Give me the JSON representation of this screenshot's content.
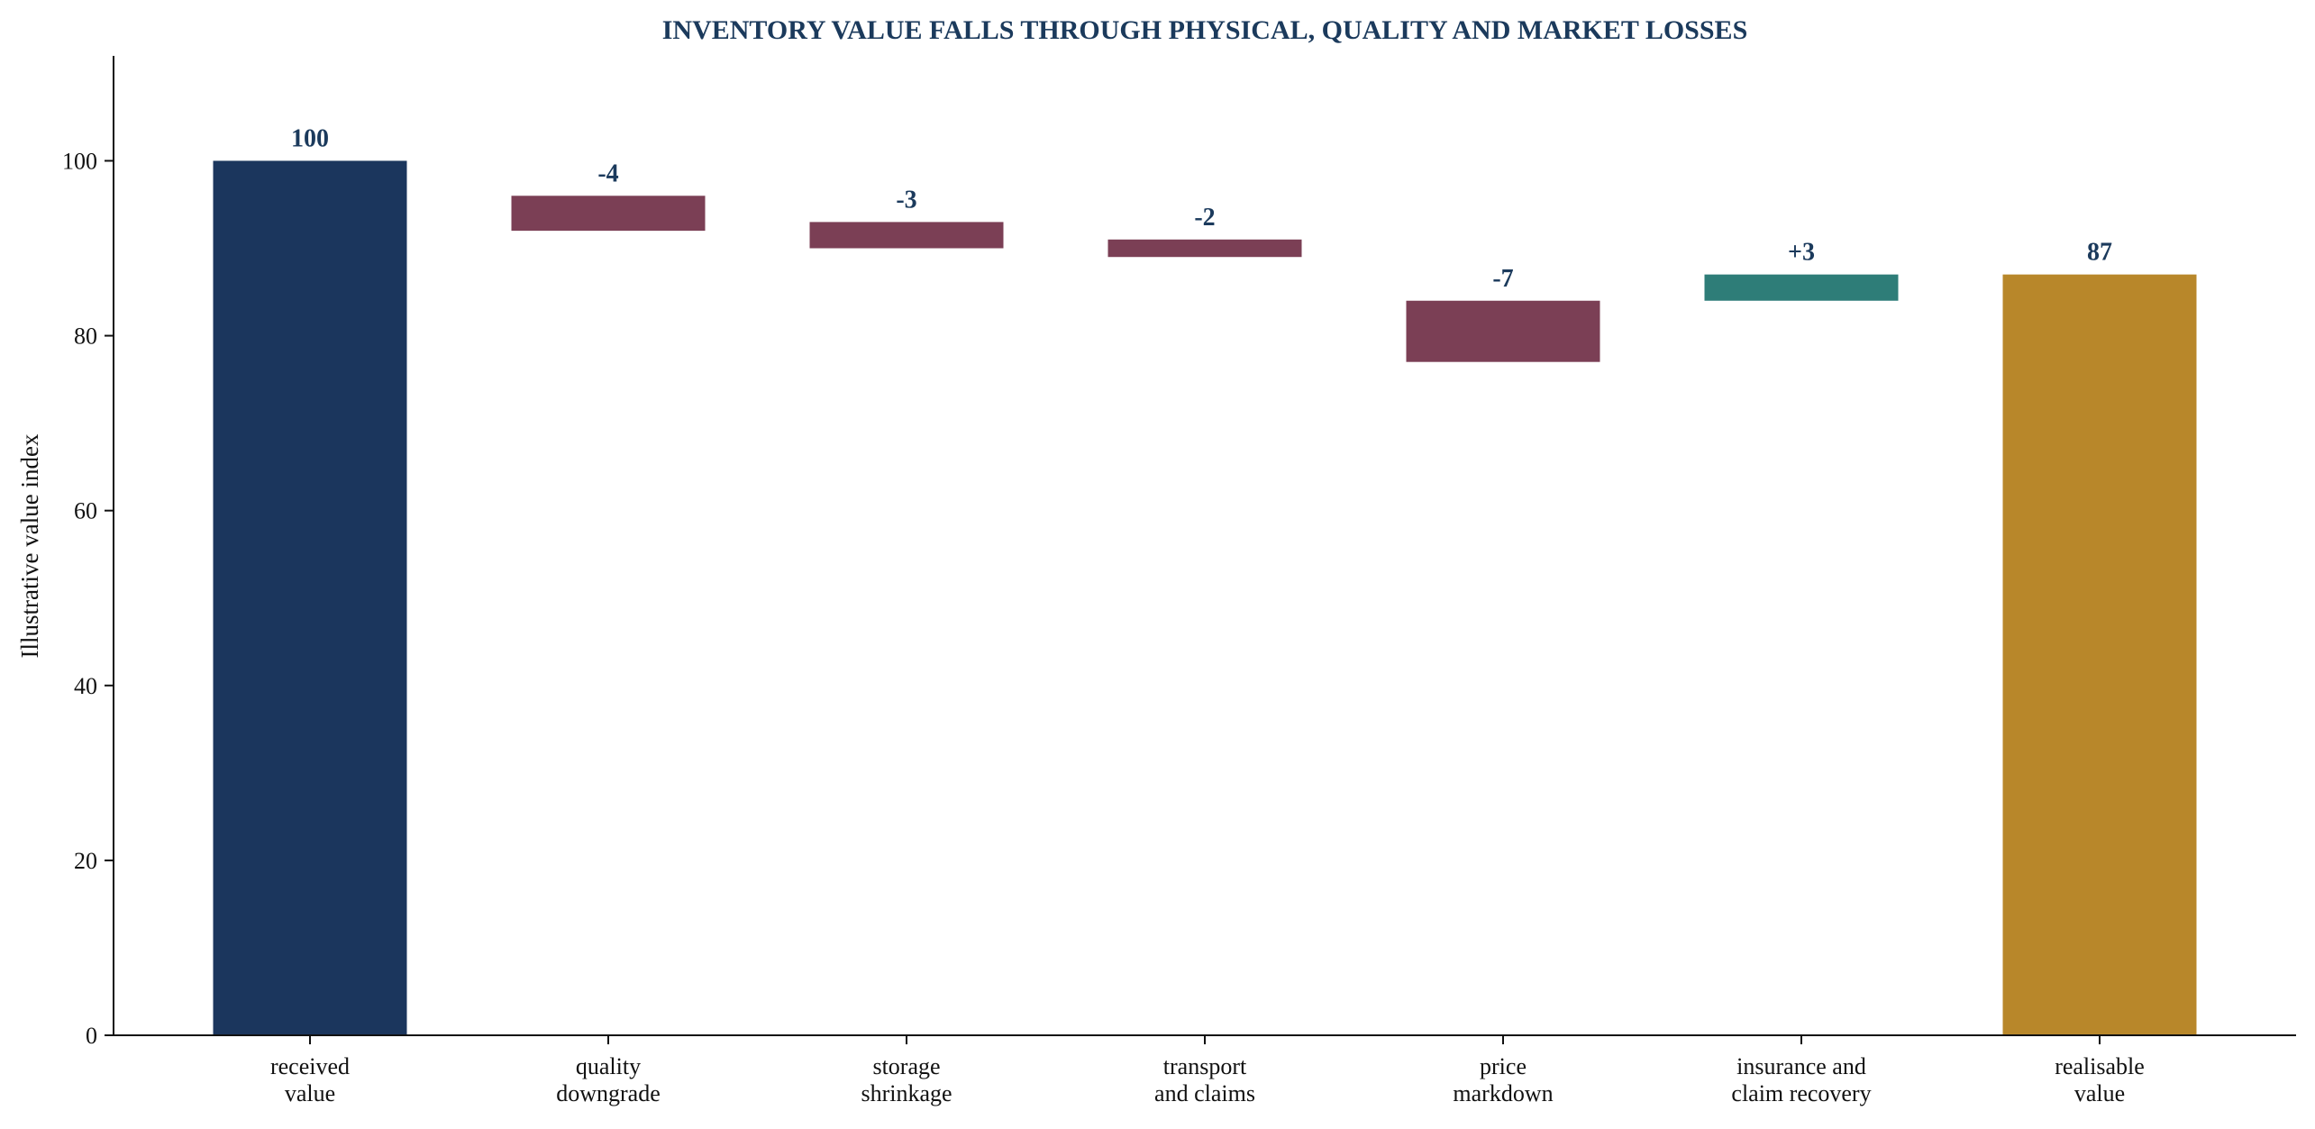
{
  "chart_data": {
    "type": "bar",
    "subtype": "waterfall",
    "title": "INVENTORY VALUE FALLS THROUGH PHYSICAL, QUALITY AND MARKET LOSSES",
    "xlabel": "",
    "ylabel": "Illustrative value index",
    "ylim": [
      0,
      112
    ],
    "yticks": [
      0,
      20,
      40,
      60,
      80,
      100
    ],
    "grid": false,
    "legend": "none",
    "categories": [
      [
        "received",
        "value"
      ],
      [
        "quality",
        "downgrade"
      ],
      [
        "storage",
        "shrinkage"
      ],
      [
        "transport",
        "and claims"
      ],
      [
        "price",
        "markdown"
      ],
      [
        "insurance and",
        "claim recovery"
      ],
      [
        "realisable",
        "value"
      ]
    ],
    "bars": [
      {
        "kind": "total",
        "bottom": 0,
        "top": 100,
        "label": "100"
      },
      {
        "kind": "decrease",
        "bottom": 92,
        "top": 96,
        "label": "-4"
      },
      {
        "kind": "decrease",
        "bottom": 90,
        "top": 93,
        "label": "-3"
      },
      {
        "kind": "decrease",
        "bottom": 89,
        "top": 91,
        "label": "-2"
      },
      {
        "kind": "decrease",
        "bottom": 77,
        "top": 84,
        "label": "-7"
      },
      {
        "kind": "increase",
        "bottom": 84,
        "top": 87,
        "label": "+3"
      },
      {
        "kind": "result",
        "bottom": 0,
        "top": 87,
        "label": "87"
      }
    ],
    "colors": {
      "total": "#1b365d",
      "decrease": "#7b3f55",
      "increase": "#2e7d78",
      "result": "#b8872a",
      "title": "#1b3a5c",
      "axis": "#111111"
    }
  }
}
